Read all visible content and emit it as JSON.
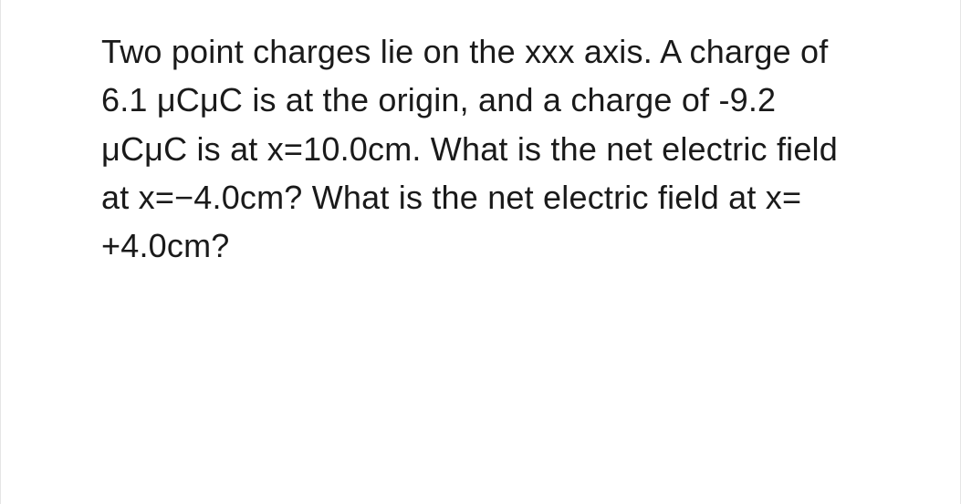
{
  "question": {
    "text": "Two point charges lie on the xxx axis. A charge of 6.1 μCμC is at the origin, and a charge of -9.2 μCμC is at x=10.0cm. What is the net electric field at x=−4.0cm? What is the net electric field at x= +4.0cm?",
    "font_size": 36,
    "line_height": 1.48,
    "text_color": "#1a1a1a",
    "background_color": "#ffffff",
    "border_color": "#e5e5e5",
    "font_weight": 400
  }
}
